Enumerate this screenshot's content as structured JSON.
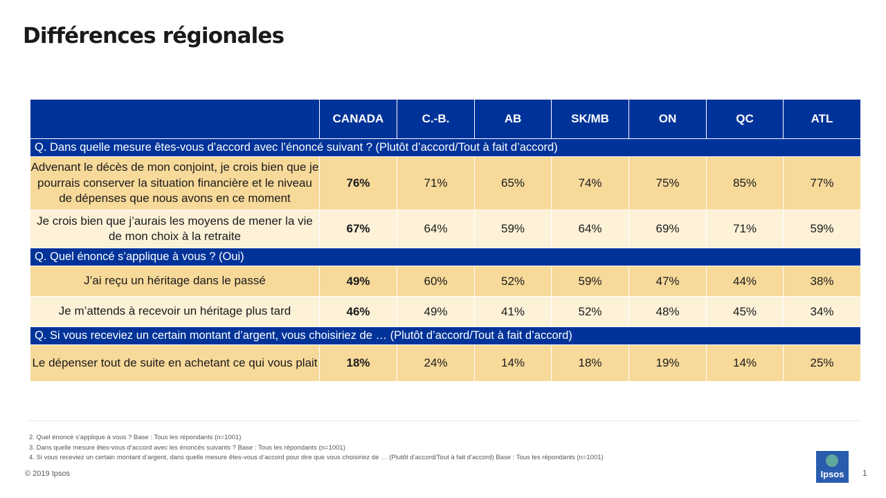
{
  "title": "Différences régionales",
  "columns": [
    "CANADA",
    "C.-B.",
    "AB",
    "SK/MB",
    "ON",
    "QC",
    "ATL"
  ],
  "questions": [
    "Q. Dans quelle mesure êtes-vous d’accord avec l’énoncé suivant ? (Plutôt d’accord/Tout à fait d’accord)",
    "Q. Quel énoncé s’applique à vous ? (Oui)",
    "Q. Si vous receviez un certain montant d’argent, vous choisiriez de … (Plutôt d’accord/Tout à fait d’accord)"
  ],
  "rows": [
    {
      "label": "Advenant le décès de mon conjoint, je crois bien que je pourrais conserver la situation financière et le niveau de dépenses que nous avons en ce moment",
      "values": [
        "76%",
        "71%",
        "65%",
        "74%",
        "75%",
        "85%",
        "77%"
      ]
    },
    {
      "label": "Je crois bien que j’aurais les moyens de mener la vie de mon choix à la retraite",
      "values": [
        "67%",
        "64%",
        "59%",
        "64%",
        "69%",
        "71%",
        "59%"
      ]
    },
    {
      "label": "J’ai reçu un héritage dans le passé",
      "values": [
        "49%",
        "60%",
        "52%",
        "59%",
        "47%",
        "44%",
        "38%"
      ]
    },
    {
      "label": "Je m’attends à recevoir un héritage plus tard",
      "values": [
        "46%",
        "49%",
        "41%",
        "52%",
        "48%",
        "45%",
        "34%"
      ]
    },
    {
      "label": "Le dépenser tout de suite en achetant ce qui vous plait",
      "values": [
        "18%",
        "24%",
        "14%",
        "18%",
        "19%",
        "14%",
        "25%"
      ]
    }
  ],
  "notes": [
    "2. Quel énoncé s’applique à vous ? Base : Tous les répondants (n=1001)",
    "3. Dans quelle mesure êtes-vous d’accord avec les énoncés suivants ? Base : Tous les répondants (n=1001)",
    "4. Si vous receviez un certain montant d’argent, dans quelle mesure êtes-vous d’accord pour dire que vous choisiriez de … (Plutôt d’accord/Tout à fait d’accord) Base : Tous les répondants (n=1001)"
  ],
  "copyright": "© 2019 Ipsos",
  "logo_text": "Ipsos",
  "page_number": "1",
  "colors": {
    "header_blue": "#003399",
    "row_dark": "#f7d99a",
    "row_light": "#fdf1d8",
    "logo_blue": "#2a5cad",
    "logo_teal": "#5fa8a0"
  }
}
